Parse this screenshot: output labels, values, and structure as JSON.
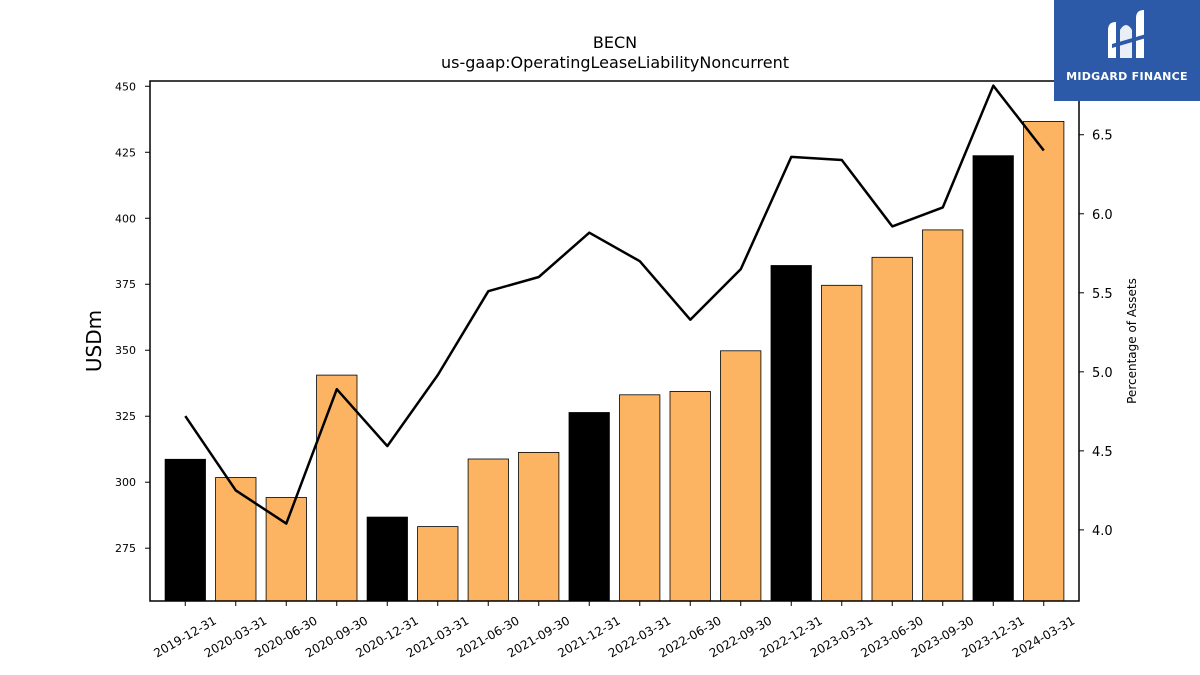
{
  "chart_data": {
    "type": "bar",
    "title": "BECN",
    "subtitle": "us-gaap:OperatingLeaseLiabilityNoncurrent",
    "ylabel": "USDm",
    "y2label": "Percentage of Assets",
    "categories": [
      "2019-12-31",
      "2020-03-31",
      "2020-06-30",
      "2020-09-30",
      "2020-12-31",
      "2021-03-31",
      "2021-06-30",
      "2021-09-30",
      "2021-12-31",
      "2022-03-31",
      "2022-06-30",
      "2022-09-30",
      "2022-12-31",
      "2023-03-31",
      "2023-06-30",
      "2023-09-30",
      "2023-12-31",
      "2024-03-31"
    ],
    "series": [
      {
        "type": "bar",
        "values": [
          308.7,
          301.8,
          294.2,
          340.6,
          286.8,
          283.2,
          308.8,
          311.3,
          326.4,
          333.1,
          334.4,
          349.8,
          382.1,
          374.6,
          385.2,
          395.6,
          423.7,
          436.7
        ],
        "colors": [
          "#000000",
          "#fdb462",
          "#fdb462",
          "#fdb462",
          "#000000",
          "#fdb462",
          "#fdb462",
          "#fdb462",
          "#000000",
          "#fdb462",
          "#fdb462",
          "#fdb462",
          "#000000",
          "#fdb462",
          "#fdb462",
          "#fdb462",
          "#000000",
          "#fdb462"
        ]
      },
      {
        "type": "line",
        "axis": "right",
        "color": "#000000",
        "values": [
          4.72,
          4.25,
          4.04,
          4.89,
          4.53,
          4.98,
          5.51,
          5.6,
          5.88,
          5.7,
          5.33,
          5.65,
          6.36,
          6.34,
          5.92,
          6.04,
          6.81,
          6.4
        ]
      }
    ],
    "ylim": [
      255,
      452
    ],
    "y2lim": [
      3.55,
      6.84
    ],
    "yticks": [
      275,
      300,
      325,
      350,
      375,
      400,
      425,
      450
    ],
    "y2ticks": [
      "4.0",
      "4.5",
      "5.0",
      "5.5",
      "6.0",
      "6.5"
    ],
    "grid": false
  },
  "logo": {
    "text": "MIDGARD FINANCE",
    "color": "#2c5aa8"
  }
}
